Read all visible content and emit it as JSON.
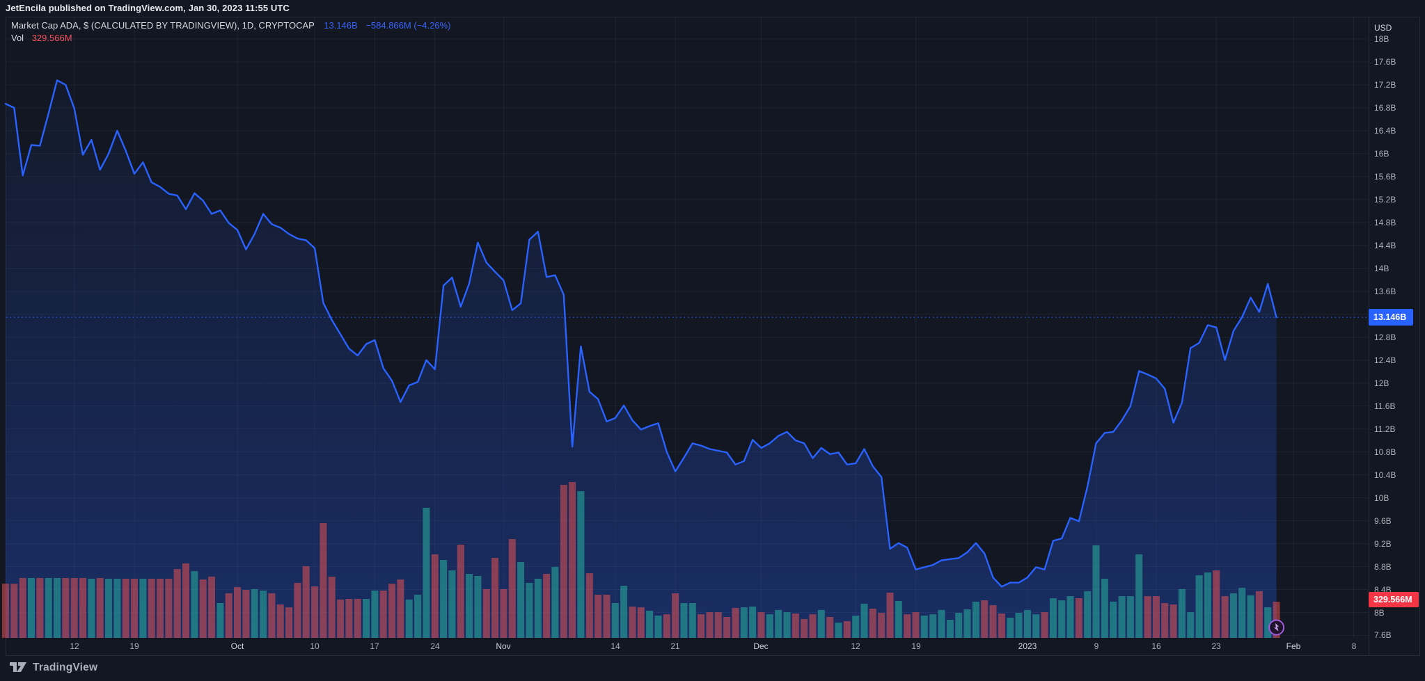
{
  "attribution": {
    "text": "JetEncila published on TradingView.com, Jan 30, 2023 11:55 UTC"
  },
  "legend": {
    "title": "Market Cap ADA, $ (CALCULATED BY TRADINGVIEW), 1D, CRYPTOCAP",
    "value": "13.146B",
    "change": "−584.866M (−4.26%)",
    "vol_label": "Vol",
    "vol_value": "329.566M"
  },
  "axis": {
    "currency_label": "USD",
    "price_label_current": "13.146B",
    "volume_label_current": "329.566M"
  },
  "footer": {
    "brand": "TradingView"
  },
  "icons": {
    "marker": "lightning-bolt-icon",
    "footer_logo": "tradingview-logo"
  },
  "colors": {
    "background": "#131722",
    "grid": "rgba(240,243,250,0.055)",
    "line": "#2962ff",
    "area_top": "rgba(41,98,255,0.04)",
    "area_bottom": "rgba(41,98,255,0.30)",
    "volume_up": "rgba(38,166,154,0.6)",
    "volume_down": "rgba(239,83,80,0.52)",
    "price_tag": "#2962ff",
    "volume_tag": "#f23645",
    "marker_ring": "#a05be0",
    "marker_bolt": "#c9a2f0",
    "axis_text": "#aeb1ba"
  },
  "chart_data": {
    "type": "area",
    "title": "Market Cap ADA (CALCULATED BY TRADINGVIEW)",
    "symbol": "CRYPTOCAP",
    "interval": "1D",
    "start_date": "2022-09-04",
    "end_date": "2023-01-30",
    "ylabel": "USD",
    "ylim": [
      7.6,
      18
    ],
    "y_tick_step_billions": 0.4,
    "grid": true,
    "legend_position": "top-left",
    "current": {
      "market_cap": "13.146B",
      "change": "−584.866M",
      "change_pct": "−4.26%",
      "volume": "329.566M"
    },
    "y_tick_labels": [
      "18B",
      "17.6B",
      "17.2B",
      "16.8B",
      "16.4B",
      "16B",
      "15.6B",
      "15.2B",
      "14.8B",
      "14.4B",
      "14B",
      "13.6B",
      "13.2B",
      "12.8B",
      "12.4B",
      "12B",
      "11.6B",
      "11.2B",
      "10.8B",
      "10.4B",
      "10B",
      "9.6B",
      "9.2B",
      "8.8B",
      "8.4B",
      "8B",
      "7.6B"
    ],
    "x_ticks": [
      {
        "day": 8,
        "label": "12"
      },
      {
        "day": 15,
        "label": "19"
      },
      {
        "day": 27,
        "label": "Oct",
        "month": true
      },
      {
        "day": 36,
        "label": "10"
      },
      {
        "day": 43,
        "label": "17"
      },
      {
        "day": 50,
        "label": "24"
      },
      {
        "day": 58,
        "label": "Nov",
        "month": true
      },
      {
        "day": 71,
        "label": "14"
      },
      {
        "day": 78,
        "label": "21"
      },
      {
        "day": 88,
        "label": "Dec",
        "month": true
      },
      {
        "day": 99,
        "label": "12"
      },
      {
        "day": 106,
        "label": "19"
      },
      {
        "day": 119,
        "label": "2023",
        "month": true
      },
      {
        "day": 127,
        "label": "9"
      },
      {
        "day": 134,
        "label": "16"
      },
      {
        "day": 141,
        "label": "23"
      },
      {
        "day": 150,
        "label": "Feb",
        "month": true
      },
      {
        "day": 157,
        "label": "8"
      }
    ],
    "market_cap_billions": [
      16.87,
      16.8,
      15.62,
      16.15,
      16.14,
      16.7,
      17.28,
      17.2,
      16.79,
      15.98,
      16.24,
      15.72,
      16.0,
      16.4,
      16.05,
      15.65,
      15.85,
      15.5,
      15.42,
      15.3,
      15.27,
      15.03,
      15.31,
      15.18,
      14.95,
      15.01,
      14.79,
      14.67,
      14.33,
      14.6,
      14.95,
      14.77,
      14.71,
      14.6,
      14.52,
      14.49,
      14.35,
      13.4,
      13.1,
      12.85,
      12.6,
      12.48,
      12.68,
      12.75,
      12.26,
      12.04,
      11.67,
      11.96,
      12.02,
      12.4,
      12.24,
      13.7,
      13.84,
      13.33,
      13.74,
      14.45,
      14.1,
      13.94,
      13.79,
      13.27,
      13.39,
      14.5,
      14.64,
      13.85,
      13.88,
      13.54,
      10.89,
      12.64,
      11.85,
      11.72,
      11.33,
      11.39,
      11.61,
      11.35,
      11.19,
      11.25,
      11.3,
      10.8,
      10.46,
      10.7,
      10.95,
      10.91,
      10.85,
      10.82,
      10.79,
      10.58,
      10.64,
      11.01,
      10.87,
      10.95,
      11.08,
      11.15,
      11.0,
      10.95,
      10.69,
      10.87,
      10.76,
      10.79,
      10.58,
      10.6,
      10.85,
      10.55,
      10.36,
      9.11,
      9.21,
      9.13,
      8.75,
      8.79,
      8.83,
      8.91,
      8.93,
      8.95,
      9.05,
      9.21,
      9.03,
      8.61,
      8.45,
      8.52,
      8.52,
      8.61,
      8.79,
      8.75,
      9.25,
      9.29,
      9.65,
      9.59,
      10.2,
      10.95,
      11.13,
      11.15,
      11.35,
      11.6,
      12.21,
      12.15,
      12.08,
      11.9,
      11.31,
      11.66,
      12.61,
      12.7,
      13.01,
      12.97,
      12.4,
      12.91,
      13.15,
      13.49,
      13.24,
      13.73,
      13.146
    ],
    "volume_millions": [
      494,
      494,
      545,
      545,
      545,
      545,
      545,
      545,
      545,
      545,
      539,
      545,
      539,
      539,
      539,
      539,
      539,
      539,
      539,
      539,
      627,
      678,
      608,
      532,
      558,
      317,
      406,
      463,
      437,
      444,
      431,
      406,
      304,
      279,
      501,
      653,
      469,
      1046,
      558,
      349,
      355,
      355,
      355,
      431,
      431,
      494,
      532,
      349,
      393,
      1185,
      761,
      710,
      615,
      849,
      583,
      564,
      444,
      729,
      444,
      900,
      691,
      501,
      539,
      583,
      646,
      1394,
      1420,
      1337,
      589,
      393,
      393,
      317,
      475,
      285,
      279,
      247,
      203,
      215,
      406,
      317,
      317,
      215,
      234,
      234,
      190,
      273,
      279,
      285,
      234,
      215,
      254,
      234,
      222,
      171,
      215,
      254,
      190,
      139,
      152,
      203,
      311,
      266,
      228,
      412,
      336,
      215,
      234,
      203,
      215,
      254,
      165,
      228,
      260,
      330,
      342,
      298,
      222,
      184,
      228,
      254,
      215,
      234,
      361,
      342,
      380,
      361,
      425,
      843,
      539,
      330,
      380,
      380,
      761,
      380,
      380,
      317,
      304,
      444,
      234,
      570,
      596,
      615,
      380,
      406,
      456,
      387,
      425,
      279,
      329.566
    ],
    "volume_color_rule": "up if market cap >= previous day close, else down"
  }
}
